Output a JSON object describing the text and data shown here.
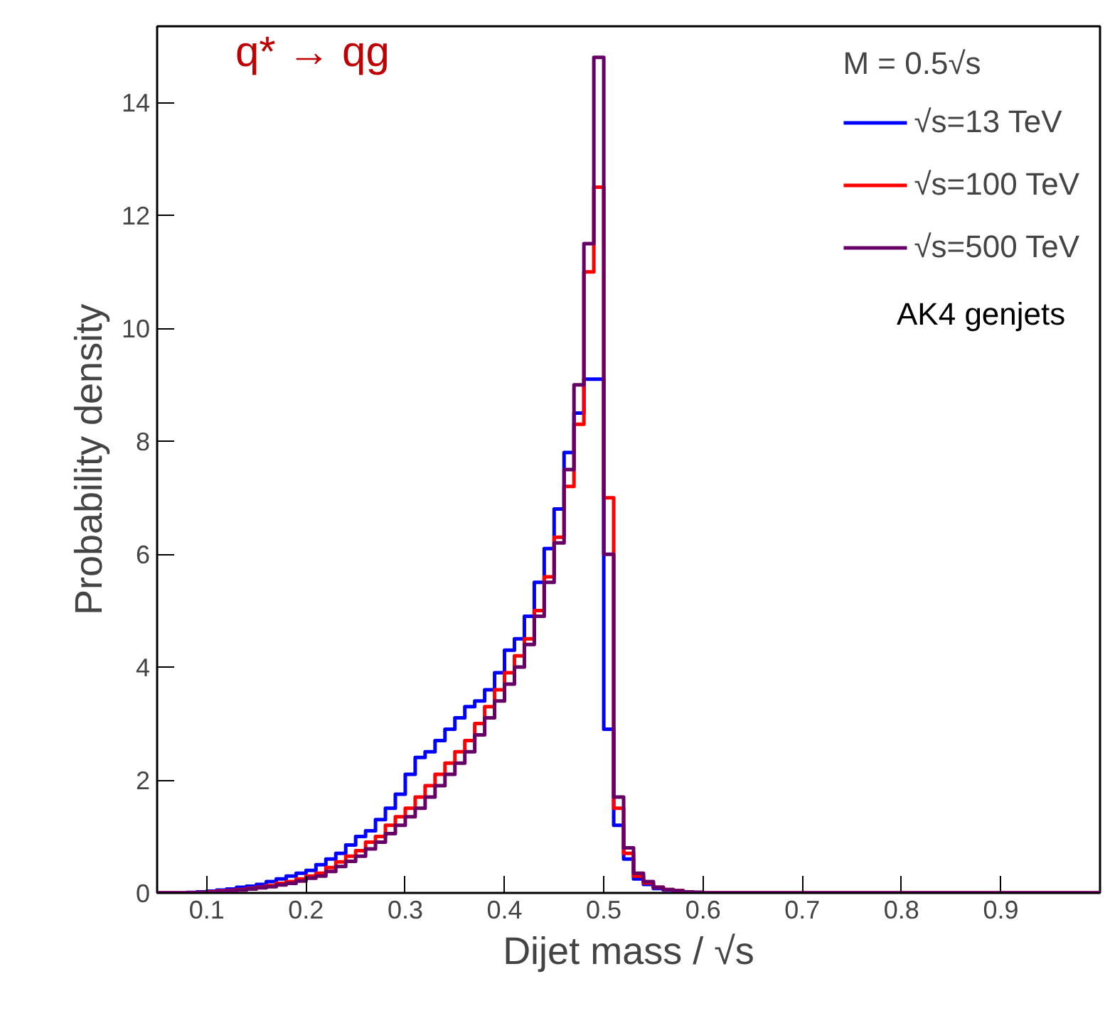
{
  "chart_data": {
    "type": "histogram",
    "xlabel": "Dijet mass / √s",
    "ylabel": "Probability density",
    "legend_title": "M = 0.5√s",
    "annotations": [
      "q* → qg",
      "AK4 genjets"
    ],
    "bins": [
      0.05,
      0.06,
      0.07,
      0.08,
      0.09,
      0.1,
      0.11,
      0.12,
      0.13,
      0.14,
      0.15,
      0.16,
      0.17,
      0.18,
      0.19,
      0.2,
      0.21,
      0.22,
      0.23,
      0.24,
      0.25,
      0.26,
      0.27,
      0.28,
      0.29,
      0.3,
      0.31,
      0.32,
      0.33,
      0.34,
      0.35,
      0.36,
      0.37,
      0.38,
      0.39,
      0.4,
      0.41,
      0.42,
      0.43,
      0.44,
      0.45,
      0.46,
      0.47,
      0.48,
      0.49,
      0.5,
      0.51,
      0.52,
      0.53,
      0.54,
      0.55,
      0.56,
      0.57,
      0.58,
      0.59,
      0.6,
      1.0
    ],
    "series": [
      {
        "name": "√s=13 TeV",
        "color": "#0000ff",
        "values": [
          0,
          0,
          0,
          0.01,
          0.02,
          0.03,
          0.05,
          0.07,
          0.1,
          0.12,
          0.15,
          0.2,
          0.25,
          0.3,
          0.35,
          0.4,
          0.5,
          0.6,
          0.7,
          0.85,
          1.0,
          1.1,
          1.3,
          1.5,
          1.75,
          2.1,
          2.4,
          2.5,
          2.7,
          2.9,
          3.1,
          3.3,
          3.4,
          3.6,
          3.9,
          4.3,
          4.5,
          4.9,
          5.5,
          6.1,
          6.8,
          7.8,
          8.5,
          9.1,
          9.1,
          2.9,
          1.2,
          0.6,
          0.25,
          0.15,
          0.08,
          0.05,
          0.03,
          0.02,
          0.01,
          0
        ]
      },
      {
        "name": "√s=100 TeV",
        "color": "#ff0000",
        "values": [
          0,
          0,
          0,
          0,
          0.01,
          0.02,
          0.03,
          0.04,
          0.06,
          0.08,
          0.1,
          0.13,
          0.17,
          0.2,
          0.25,
          0.3,
          0.35,
          0.45,
          0.55,
          0.65,
          0.75,
          0.9,
          1.0,
          1.2,
          1.35,
          1.5,
          1.7,
          1.9,
          2.1,
          2.3,
          2.5,
          2.7,
          3.0,
          3.3,
          3.6,
          3.9,
          4.2,
          4.5,
          5.0,
          5.6,
          6.3,
          7.2,
          8.3,
          11.0,
          12.5,
          7.0,
          1.5,
          0.7,
          0.3,
          0.18,
          0.1,
          0.06,
          0.04,
          0.02,
          0.01,
          0
        ]
      },
      {
        "name": "√s=500 TeV",
        "color": "#660066",
        "values": [
          0,
          0,
          0,
          0,
          0.01,
          0.01,
          0.02,
          0.03,
          0.05,
          0.07,
          0.09,
          0.11,
          0.14,
          0.17,
          0.21,
          0.26,
          0.3,
          0.38,
          0.47,
          0.56,
          0.65,
          0.78,
          0.9,
          1.05,
          1.2,
          1.35,
          1.5,
          1.7,
          1.9,
          2.1,
          2.3,
          2.5,
          2.8,
          3.1,
          3.4,
          3.7,
          4.0,
          4.4,
          4.9,
          5.5,
          6.2,
          7.5,
          9.0,
          11.5,
          14.8,
          6.0,
          1.7,
          0.8,
          0.35,
          0.2,
          0.1,
          0.06,
          0.04,
          0.02,
          0.01,
          0
        ]
      }
    ],
    "xlim": [
      0.05,
      1.0
    ],
    "ylim": [
      0,
      15.35
    ],
    "xticks": [
      0.1,
      0.2,
      0.3,
      0.4,
      0.5,
      0.6,
      0.7,
      0.8,
      0.9
    ],
    "yticks": [
      0,
      2,
      4,
      6,
      8,
      10,
      12,
      14
    ],
    "grid": false,
    "legend": "top right"
  }
}
